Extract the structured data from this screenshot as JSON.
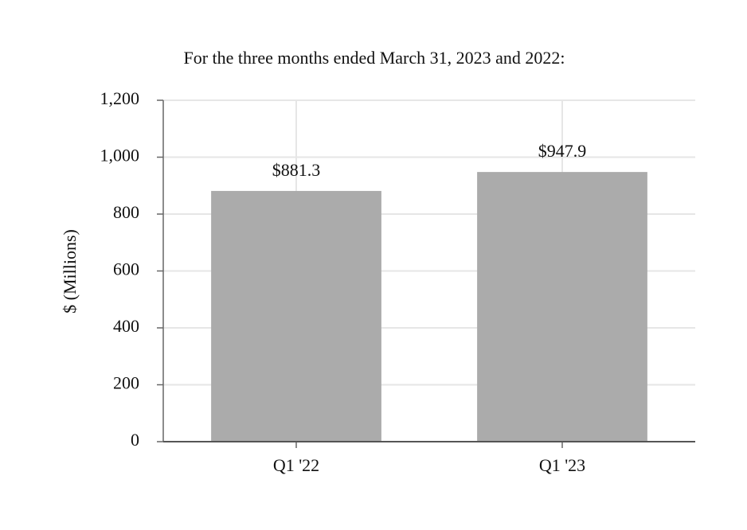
{
  "chart_data": {
    "type": "bar",
    "title": "For the three months ended March 31, 2023 and 2022:",
    "y_label": "$ (Millions)",
    "categories": [
      "Q1 '22",
      "Q1 '23"
    ],
    "values": [
      881.3,
      947.9
    ],
    "value_labels": [
      "$881.3",
      "$947.9"
    ],
    "color": "#ababab",
    "ylim": [
      0,
      1200
    ],
    "yticks": [
      0,
      200,
      400,
      600,
      800,
      {
        "value": 1000,
        "label": "1,000"
      },
      {
        "value": 1200,
        "label": "1,200"
      }
    ],
    "grid": true
  }
}
